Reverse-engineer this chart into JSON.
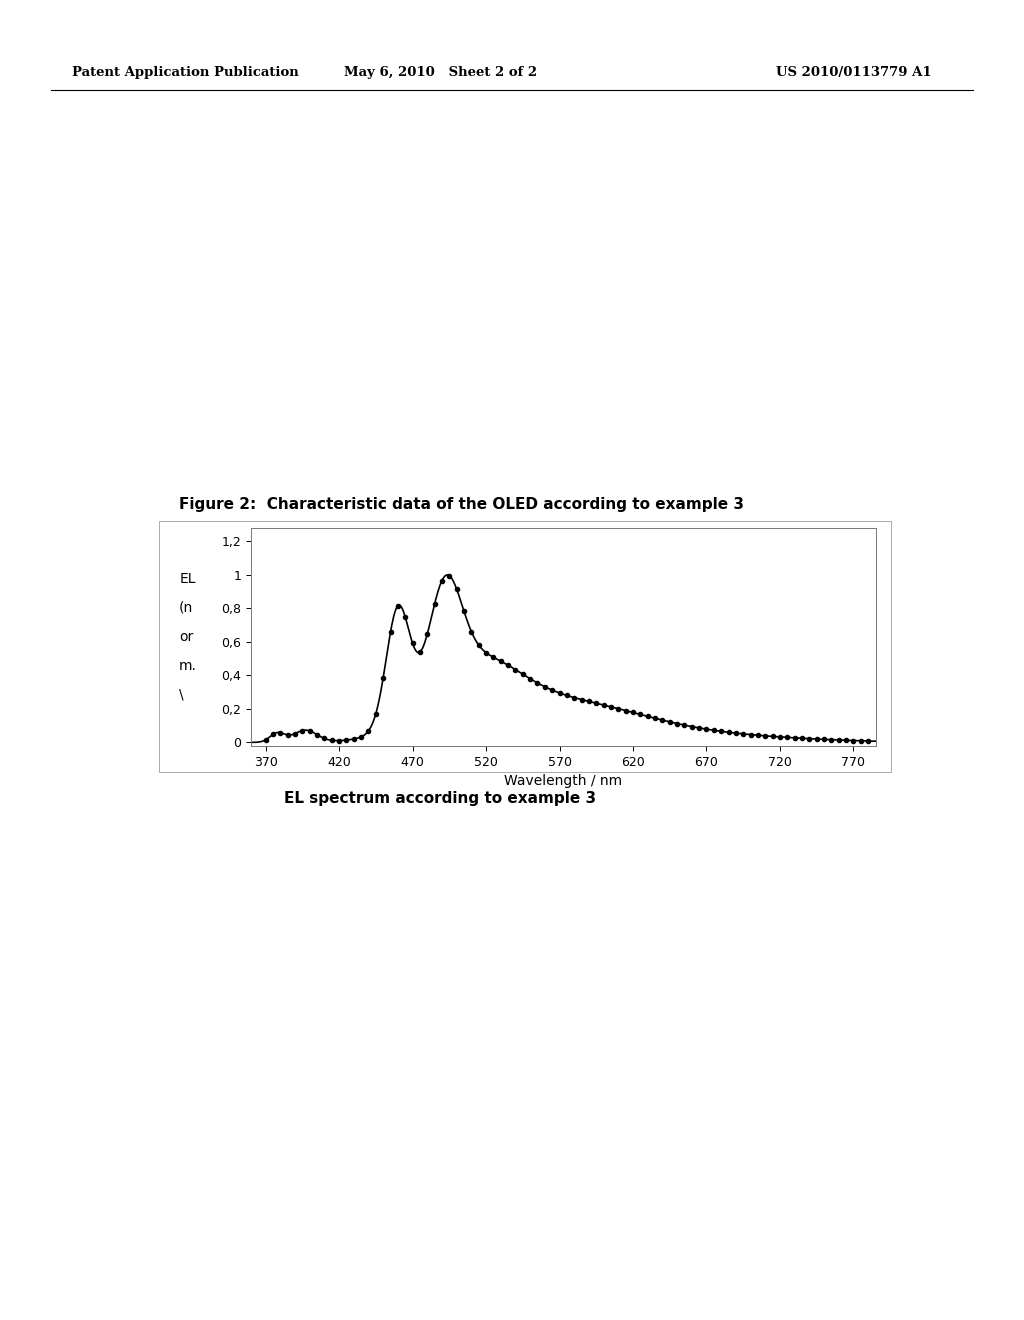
{
  "figure_title": "Figure 2:  Characteristic data of the OLED according to example 3",
  "caption": "EL spectrum according to example 3",
  "header_left": "Patent Application Publication",
  "header_center": "May 6, 2010   Sheet 2 of 2",
  "header_right": "US 2010/0113779 A1",
  "xlabel": "Wavelength / nm",
  "xlim": [
    360,
    785
  ],
  "ylim": [
    -0.02,
    1.28
  ],
  "xticks": [
    370,
    420,
    470,
    520,
    570,
    620,
    670,
    720,
    770
  ],
  "yticks": [
    0,
    0.2,
    0.4,
    0.6,
    0.8,
    1.0,
    1.2
  ],
  "ytick_labels": [
    "0",
    "0,2",
    "0,4",
    "0,6",
    "0,8",
    "1",
    "1,2"
  ],
  "background_color": "#ffffff",
  "plot_bg_color": "#ffffff",
  "line_color": "#000000",
  "marker_size": 3.0,
  "ylabel_lines": [
    "EL",
    "(n",
    "or",
    "m.",
    "\\"
  ]
}
